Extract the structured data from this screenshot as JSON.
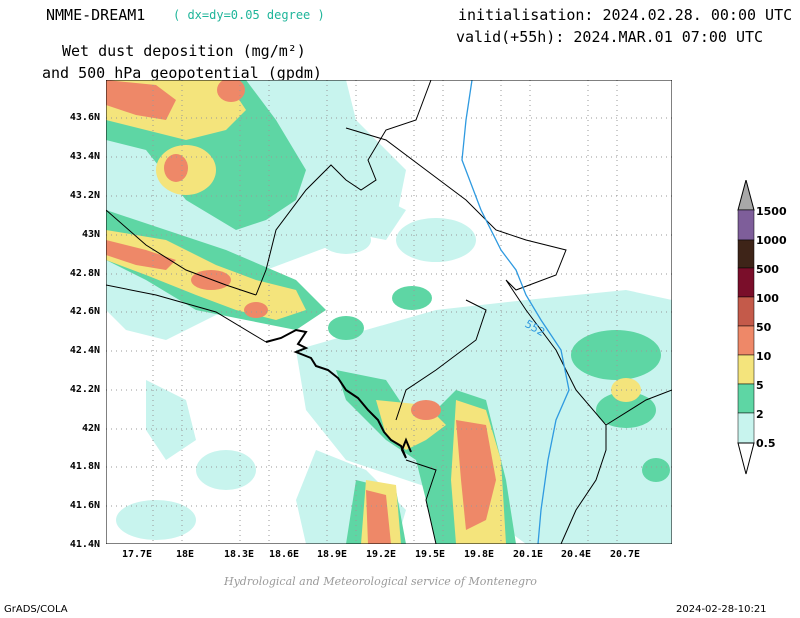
{
  "header": {
    "model": "NMME-DREAM1",
    "resolution": "( dx=dy=0.05 degree )",
    "initialisation": "initialisation: 2024.02.28. 00:00 UTC",
    "valid": "valid(+55h): 2024.MAR.01 07:00 UTC",
    "title_line1": "Wet dust deposition (mg/m²)",
    "title_line2": "and 500 hPa geopotential (gpdm)"
  },
  "axes": {
    "lat_labels": [
      "43.6N",
      "43.4N",
      "43.2N",
      "43N",
      "42.8N",
      "42.6N",
      "42.4N",
      "42.2N",
      "42N",
      "41.8N",
      "41.6N",
      "41.4N"
    ],
    "lon_labels": [
      "17.7E",
      "18E",
      "18.3E",
      "18.6E",
      "18.9E",
      "19.2E",
      "19.5E",
      "19.8E",
      "20.1E",
      "20.4E",
      "20.7E"
    ]
  },
  "contour": {
    "label": "552",
    "color": "#2f9ae0"
  },
  "colorbar": {
    "labels": [
      "0.5",
      "2",
      "5",
      "10",
      "50",
      "100",
      "500",
      "1000",
      "1500"
    ],
    "colors": [
      "#c8f4ee",
      "#5ed6a4",
      "#f4e47c",
      "#ee8868",
      "#c45a4a",
      "#7a0e2a",
      "#3e2418",
      "#7e5e9a",
      "#a8a8a8"
    ]
  },
  "footer": {
    "credit": "Hydrological and Meteorological service of Montenegro",
    "software": "GrADS/COLA",
    "timestamp": "2024-02-28-10:21"
  }
}
